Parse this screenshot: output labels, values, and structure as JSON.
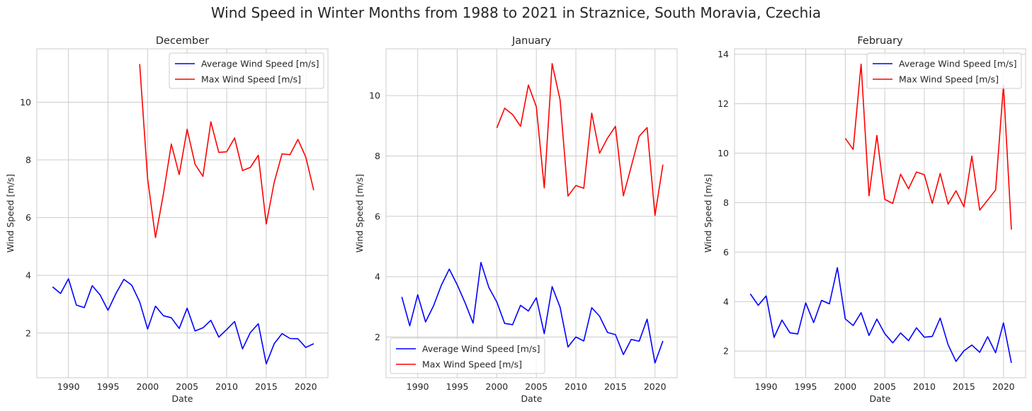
{
  "chart_data": {
    "suptitle": "Wind Speed in Winter Months from 1988 to 2021 in Straznice, South Moravia, Czechia",
    "panels": [
      {
        "type": "line",
        "title": "December",
        "xlabel": "Date",
        "ylabel": "Wind Speed [m/s]",
        "xlim": [
          1986,
          2022.8
        ],
        "ylim": [
          0.45,
          11.85
        ],
        "xticks": [
          1990,
          1995,
          2000,
          2005,
          2010,
          2015,
          2020
        ],
        "yticks": [
          2,
          4,
          6,
          8,
          10
        ],
        "legend": "top-right",
        "grid": true,
        "series": [
          {
            "name": "Average Wind Speed [m/s]",
            "color": "#0000ff",
            "x": [
              1988,
              1989,
              1990,
              1991,
              1992,
              1993,
              1994,
              1995,
              1996,
              1997,
              1998,
              1999,
              2000,
              2001,
              2002,
              2003,
              2004,
              2005,
              2006,
              2007,
              2008,
              2009,
              2010,
              2011,
              2012,
              2013,
              2014,
              2015,
              2016,
              2017,
              2018,
              2019,
              2020,
              2021
            ],
            "y": [
              3.6,
              3.37,
              3.88,
              2.97,
              2.88,
              3.64,
              3.32,
              2.79,
              3.37,
              3.86,
              3.66,
              3.08,
              2.14,
              2.93,
              2.6,
              2.53,
              2.16,
              2.86,
              2.07,
              2.18,
              2.44,
              1.86,
              2.12,
              2.4,
              1.45,
              2.02,
              2.32,
              0.93,
              1.63,
              1.98,
              1.81,
              1.8,
              1.5,
              1.63
            ]
          },
          {
            "name": "Max Wind Speed [m/s]",
            "color": "#ff0000",
            "x": [
              1999,
              2000,
              2001,
              2002,
              2003,
              2004,
              2005,
              2006,
              2007,
              2008,
              2009,
              2010,
              2011,
              2012,
              2013,
              2014,
              2015,
              2016,
              2017,
              2018,
              2019,
              2020,
              2021
            ],
            "y": [
              11.32,
              7.35,
              5.31,
              6.82,
              8.55,
              7.49,
              9.06,
              7.85,
              7.43,
              9.32,
              8.26,
              8.28,
              8.76,
              7.63,
              7.74,
              8.16,
              5.78,
              7.22,
              8.21,
              8.18,
              8.71,
              8.1,
              6.95
            ]
          }
        ]
      },
      {
        "type": "line",
        "title": "January",
        "xlabel": "Date",
        "ylabel": "Wind Speed [m/s]",
        "xlim": [
          1986,
          2022.8
        ],
        "ylim": [
          0.65,
          11.55
        ],
        "xticks": [
          1990,
          1995,
          2000,
          2005,
          2010,
          2015,
          2020
        ],
        "yticks": [
          2,
          4,
          6,
          8,
          10
        ],
        "legend": "bottom-left",
        "grid": true,
        "series": [
          {
            "name": "Average Wind Speed [m/s]",
            "color": "#0000ff",
            "x": [
              1988,
              1989,
              1990,
              1991,
              1992,
              1993,
              1994,
              1995,
              1996,
              1997,
              1998,
              1999,
              2000,
              2001,
              2002,
              2003,
              2004,
              2005,
              2006,
              2007,
              2008,
              2009,
              2010,
              2011,
              2012,
              2013,
              2014,
              2015,
              2016,
              2017,
              2018,
              2019,
              2020,
              2021
            ],
            "y": [
              3.33,
              2.37,
              3.4,
              2.5,
              3.03,
              3.72,
              4.25,
              3.73,
              3.13,
              2.46,
              4.47,
              3.64,
              3.16,
              2.45,
              2.41,
              3.05,
              2.86,
              3.3,
              2.11,
              3.67,
              2.99,
              1.67,
              2.0,
              1.87,
              2.97,
              2.69,
              2.15,
              2.08,
              1.42,
              1.92,
              1.86,
              2.59,
              1.14,
              1.87
            ]
          },
          {
            "name": "Max Wind Speed [m/s]",
            "color": "#ff0000",
            "x": [
              2000,
              2001,
              2002,
              2003,
              2004,
              2005,
              2006,
              2007,
              2008,
              2009,
              2010,
              2011,
              2012,
              2013,
              2014,
              2015,
              2016,
              2017,
              2018,
              2019,
              2020,
              2021
            ],
            "y": [
              8.93,
              9.58,
              9.37,
              8.98,
              10.35,
              9.63,
              6.94,
              11.06,
              9.86,
              6.67,
              7.02,
              6.93,
              9.42,
              8.09,
              8.59,
              8.98,
              6.68,
              7.65,
              8.65,
              8.94,
              6.03,
              7.71
            ]
          }
        ]
      },
      {
        "type": "line",
        "title": "February",
        "xlabel": "Date",
        "ylabel": "Wind Speed [m/s]",
        "xlim": [
          1986,
          2022.8
        ],
        "ylim": [
          0.92,
          14.22
        ],
        "xticks": [
          1990,
          1995,
          2000,
          2005,
          2010,
          2015,
          2020
        ],
        "yticks": [
          2,
          4,
          6,
          8,
          10,
          12,
          14
        ],
        "legend": "top-right",
        "grid": true,
        "series": [
          {
            "name": "Average Wind Speed [m/s]",
            "color": "#0000ff",
            "x": [
              1988,
              1989,
              1990,
              1991,
              1992,
              1993,
              1994,
              1995,
              1996,
              1997,
              1998,
              1999,
              2000,
              2001,
              2002,
              2003,
              2004,
              2005,
              2006,
              2007,
              2008,
              2009,
              2010,
              2011,
              2012,
              2013,
              2014,
              2015,
              2016,
              2017,
              2018,
              2019,
              2020,
              2021
            ],
            "y": [
              4.31,
              3.85,
              4.23,
              2.55,
              3.25,
              2.74,
              2.69,
              3.95,
              3.15,
              4.05,
              3.91,
              5.37,
              3.3,
              3.03,
              3.55,
              2.63,
              3.29,
              2.7,
              2.33,
              2.73,
              2.42,
              2.94,
              2.56,
              2.59,
              3.33,
              2.26,
              1.58,
              2.01,
              2.24,
              1.95,
              2.58,
              1.93,
              3.14,
              1.52
            ]
          },
          {
            "name": "Max Wind Speed [m/s]",
            "color": "#ff0000",
            "x": [
              2000,
              2001,
              2002,
              2003,
              2004,
              2005,
              2006,
              2007,
              2008,
              2009,
              2010,
              2011,
              2012,
              2013,
              2014,
              2015,
              2016,
              2017,
              2019,
              2020,
              2021
            ],
            "y": [
              10.6,
              10.15,
              13.6,
              8.28,
              10.72,
              8.13,
              7.97,
              9.15,
              8.56,
              9.24,
              9.13,
              7.97,
              9.18,
              7.94,
              8.48,
              7.83,
              9.88,
              7.7,
              8.51,
              12.74,
              6.91
            ]
          }
        ]
      }
    ]
  }
}
